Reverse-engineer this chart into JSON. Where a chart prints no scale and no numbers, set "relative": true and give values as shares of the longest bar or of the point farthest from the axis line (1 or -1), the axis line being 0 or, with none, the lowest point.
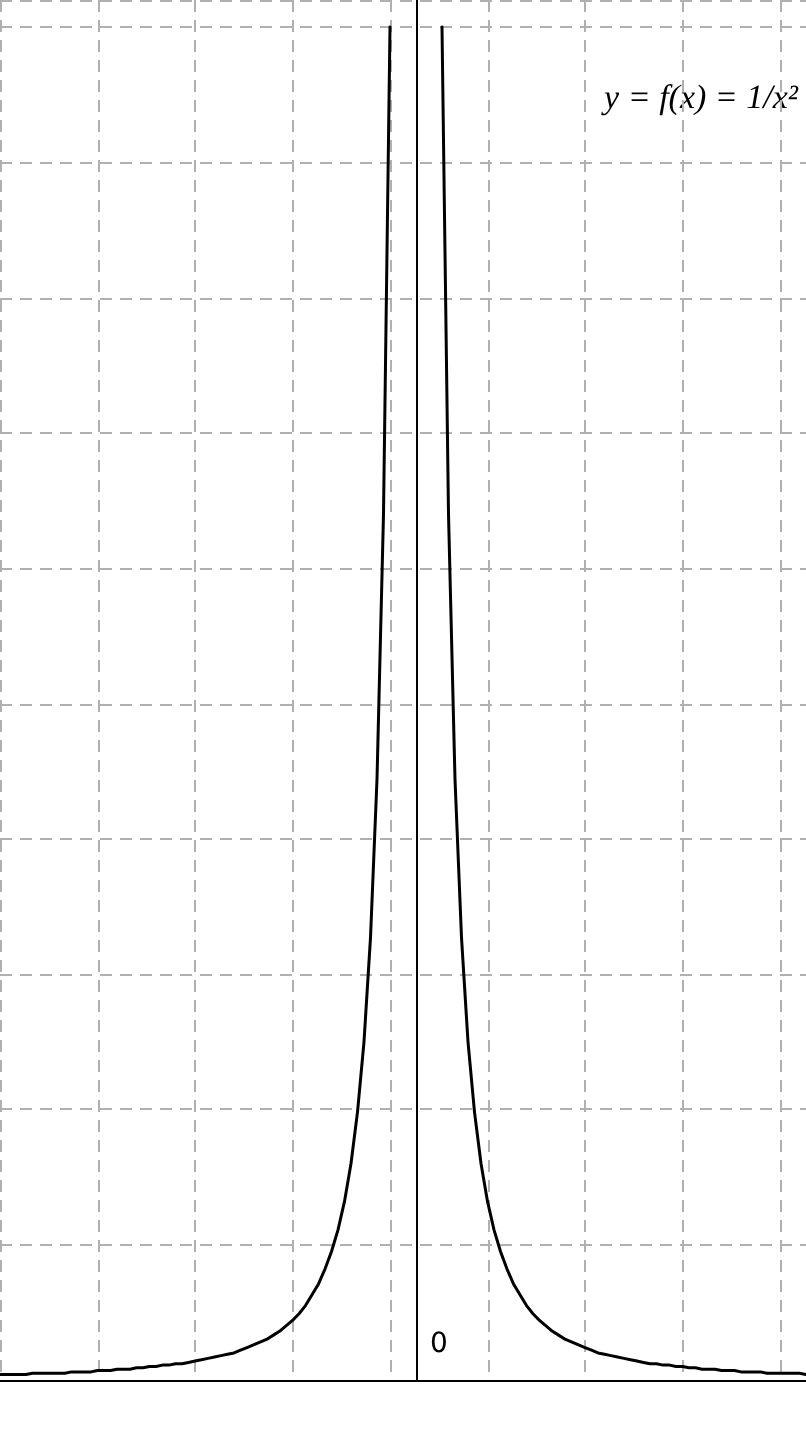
{
  "chart_data": {
    "type": "line",
    "relative": true,
    "grid": true,
    "line_style": "solid",
    "annotations": [
      "y = f(x) = 1/x²",
      "0"
    ],
    "categories": [
      null,
      null,
      null,
      null,
      null,
      null,
      null,
      null,
      null,
      null,
      null,
      null,
      null,
      null,
      null,
      null,
      null,
      null,
      null,
      null,
      null,
      null,
      null,
      null,
      null,
      null,
      null,
      null,
      null,
      null,
      null,
      null,
      null,
      null,
      null,
      null,
      null,
      null,
      null,
      null,
      null,
      null,
      null,
      null,
      null,
      null,
      null,
      null,
      null,
      null,
      null,
      null,
      null,
      null,
      null,
      null,
      null,
      null,
      null,
      null,
      null,
      null,
      null,
      null,
      null,
      null,
      null,
      null,
      null,
      null,
      null,
      null,
      null,
      null,
      null,
      null,
      null,
      null,
      null,
      null,
      null,
      null,
      null,
      null,
      null,
      null,
      null,
      null,
      null,
      null,
      null,
      null,
      null,
      null,
      null,
      null,
      null,
      null,
      null,
      null,
      null,
      null,
      null,
      null,
      null,
      null,
      null,
      null,
      null,
      null,
      null,
      null,
      null,
      null,
      null,
      null,
      null,
      null,
      null,
      null,
      null,
      null,
      null,
      null,
      null
    ],
    "series": [
      {
        "color": "#000000",
        "values": [
          0.004,
          0.004,
          0.004,
          0.004,
          0.004,
          0.005,
          0.005,
          0.005,
          0.005,
          0.005,
          0.005,
          0.006,
          0.006,
          0.006,
          0.006,
          0.007,
          0.007,
          0.007,
          0.008,
          0.008,
          0.008,
          0.009,
          0.009,
          0.01,
          0.01,
          0.011,
          0.011,
          0.012,
          0.012,
          0.013,
          0.014,
          0.015,
          0.016,
          0.017,
          0.018,
          0.019,
          0.02,
          0.022,
          0.024,
          0.026,
          0.028,
          0.03,
          0.033,
          0.036,
          0.04,
          0.044,
          0.049,
          0.055,
          0.063,
          0.071,
          0.082,
          0.095,
          0.111,
          0.132,
          0.16,
          0.198,
          0.25,
          0.327,
          0.444,
          0.64,
          1,
          null,
          null,
          null,
          null,
          null,
          null,
          null,
          null,
          null,
          null,
          null,
          null,
          null,
          null,
          null,
          null,
          null,
          null,
          null,
          null,
          null,
          null,
          null,
          null,
          null,
          null,
          null,
          null,
          null,
          null,
          null,
          null,
          null,
          null,
          null,
          null,
          null,
          null,
          null,
          null,
          null,
          null,
          null,
          null,
          null,
          null,
          null,
          null,
          null,
          null,
          null,
          null,
          null,
          null,
          null,
          null,
          null,
          null,
          null,
          null,
          null,
          null,
          null,
          null
        ]
      },
      {
        "color": "#000000",
        "values": [
          null,
          null,
          null,
          null,
          null,
          null,
          null,
          null,
          null,
          null,
          null,
          null,
          null,
          null,
          null,
          null,
          null,
          null,
          null,
          null,
          null,
          null,
          null,
          null,
          null,
          null,
          null,
          null,
          null,
          null,
          null,
          null,
          null,
          null,
          null,
          null,
          null,
          null,
          null,
          null,
          null,
          null,
          null,
          null,
          null,
          null,
          null,
          null,
          null,
          null,
          null,
          null,
          null,
          null,
          null,
          null,
          null,
          null,
          null,
          null,
          null,
          null,
          null,
          null,
          null,
          null,
          null,
          null,
          1,
          0.64,
          0.444,
          0.327,
          0.25,
          0.198,
          0.16,
          0.132,
          0.111,
          0.095,
          0.082,
          0.071,
          0.063,
          0.055,
          0.049,
          0.044,
          0.04,
          0.036,
          0.033,
          0.03,
          0.028,
          0.026,
          0.024,
          0.022,
          0.02,
          0.019,
          0.018,
          0.017,
          0.016,
          0.015,
          0.014,
          0.013,
          0.012,
          0.012,
          0.011,
          0.011,
          0.01,
          0.01,
          0.009,
          0.009,
          0.008,
          0.008,
          0.008,
          0.007,
          0.007,
          0.007,
          0.006,
          0.006,
          0.006,
          0.006,
          0.005,
          0.005,
          0.005,
          0.005,
          0.005,
          0.005,
          0.004
        ]
      }
    ]
  }
}
